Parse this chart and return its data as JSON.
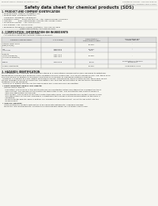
{
  "bg_color": "#f5f5f0",
  "header_left": "Product Name: Lithium Ion Battery Cell",
  "header_right_line1": "Substance number: SRP-049-008-03",
  "header_right_line2": "Established / Revision: Dec.7.2010",
  "title": "Safety data sheet for chemical products (SDS)",
  "s1_title": "1. PRODUCT AND COMPANY IDENTIFICATION",
  "s1_lines": [
    " • Product name: Lithium Ion Battery Cell",
    " • Product code: Cylindrical-type cell",
    "    SW-B6600, SW-B8550, SW-B8600A",
    " • Company name:    Sanyo Electric Co., Ltd., Mobile Energy Company",
    " • Address:          2001, Kamikosaka, Sumoto-City, Hyogo, Japan",
    " • Telephone number:  +81-799-26-4111",
    " • Fax number: +81-799-26-4121",
    " • Emergency telephone number (daytime): +81-799-26-3962",
    "                               (Night and holiday) +81-799-26-4101"
  ],
  "s2_title": "2. COMPOSITION / INFORMATION ON INGREDIENTS",
  "s2_line1": " • Substance or preparation: Preparation",
  "s2_line2": "   • Information about the chemical nature of product:",
  "tbl_hdr": [
    "Common chemical names",
    "CAS number",
    "Concentration /\nConcentration range",
    "Classification and\nhazard labeling"
  ],
  "tbl_rows": [
    [
      "Lithium cobalt oxide\n(LiMn/CoO(Ni))",
      "",
      "30-60%",
      "-"
    ],
    [
      "Iron\nAluminum",
      "7439-89-6\n7429-90-5",
      "15-25%\n2-5%",
      "-\n-"
    ],
    [
      "Graphite\n(Hard or graphite)\n(All film or graphite)",
      "7782-42-5\n7782-44-2",
      "10-25%",
      "-"
    ],
    [
      "Copper",
      "7440-50-8",
      "5-15%",
      "Sensitization of the skin\ngroup No.2"
    ],
    [
      "Organic electrolyte",
      "",
      "10-20%",
      "Inflammable liquid"
    ]
  ],
  "s3_title": "3. HAZARDS IDENTIFICATION",
  "s3_para": "For the battery cell, chemical materials are stored in a hermetically sealed metal case, designed to withstand\ntemperature changes and pressure-some conditions during normal use. As a result, during normal use, there is no\nphysical danger of ignition or explosion and there is no danger of hazardous materials leakage.\n  However, if exposed to a fire, added mechanical shocks, decomposed, when electric enters, there may result.\nNo gas leakage need not be operated. The battery cell case will be protected of fire particles, hazardous\nmaterials may be released.\n  Moreover, if heated strongly by the surrounding fire, some gas may be emitted.",
  "s3_sub1": " • Most important hazard and effects:",
  "s3_sub1_text": "    Human health effects:\n      Inhalation: The release of the electrolyte has an anesthetics action and stimulates a respiratory tract.\n      Skin contact: The release of the electrolyte stimulates a skin. The electrolyte skin contact causes a\n      sore and stimulation on the skin.\n      Eye contact: The release of the electrolyte stimulates eyes. The electrolyte eye contact causes a sore\n      and stimulation on the eye. Especially, a substance that causes a strong inflammation of the eyes is\n      contained.\n      Environmental effects: Since a battery cell remains in the environment, do not throw out it into the\n      environment.",
  "s3_sub2": " • Specific hazards:",
  "s3_sub2_text": "    If the electrolyte contacts with water, it will generate detrimental hydrogen fluoride.\n    Since the lead environmental electrolyte is inflammable liquid, do not bring close to fire."
}
